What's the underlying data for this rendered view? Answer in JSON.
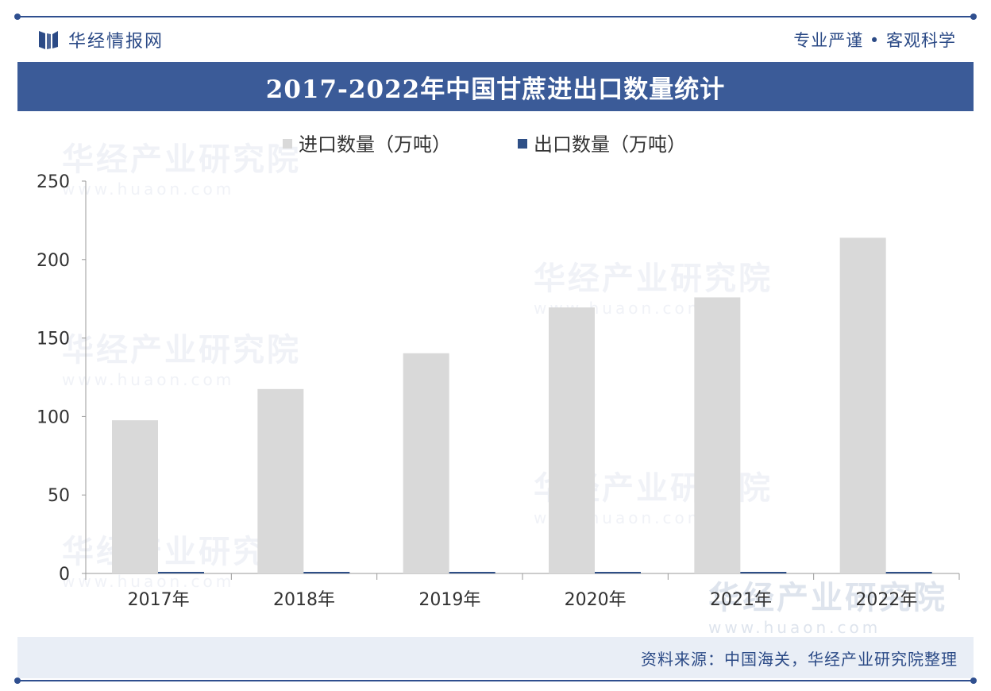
{
  "header": {
    "brand_name": "华经情报网",
    "slogan": "专业严谨 • 客观科学"
  },
  "title": "2017-2022年中国甘蔗进出口数量统计",
  "footer": {
    "source": "资料来源：中国海关，华经产业研究院整理"
  },
  "watermark": {
    "name": "华经产业研究院",
    "url": "www.huaon.com"
  },
  "colors": {
    "brand": "#2b4a86",
    "title_bar": "#3b5b98",
    "import_bar": "#d9d9d9",
    "export_bar": "#2e4f86"
  },
  "chart_data": {
    "type": "bar",
    "categories": [
      "2017年",
      "2018年",
      "2019年",
      "2020年",
      "2021年",
      "2022年"
    ],
    "series": [
      {
        "name": "进口数量（万吨）",
        "values": [
          97.6,
          117.5,
          140.3,
          169.5,
          175.9,
          213.9
        ]
      },
      {
        "name": "出口数量（万吨）",
        "values": [
          0.3,
          0.3,
          0.3,
          0.3,
          0.3,
          0.3
        ]
      }
    ],
    "ylim": [
      0,
      250
    ],
    "yticks": [
      "0",
      "50",
      "100",
      "150",
      "200",
      "250"
    ],
    "legend_position": "top-center",
    "grid": false
  }
}
